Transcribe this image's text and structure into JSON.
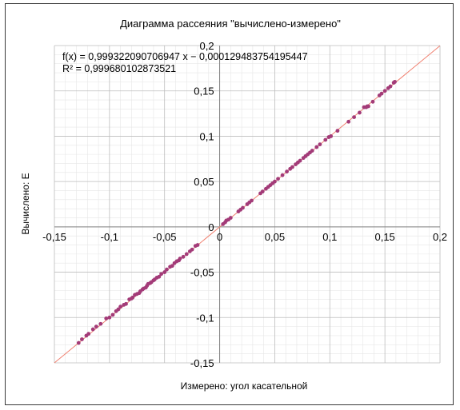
{
  "chart_data": {
    "type": "scatter",
    "title": "Диаграмма рассеяния \"вычислено-измерено\"",
    "xlabel": "Измерено: угол касательной",
    "ylabel": "Вычислено: E",
    "xlim": [
      -0.15,
      0.2
    ],
    "ylim": [
      -0.15,
      0.2
    ],
    "x_ticks": [
      "-0,15",
      "-0,1",
      "-0,05",
      "0",
      "0,05",
      "0,1",
      "0,15",
      "0,2"
    ],
    "y_ticks": [
      "-0,15",
      "-0,1",
      "-0,05",
      "0",
      "0,05",
      "0,1",
      "0,15",
      "0,2"
    ],
    "grid": true,
    "legend": "none",
    "trendline": {
      "type": "linear",
      "equation": "f(x) = 0,999322090706947 x − 0,000129483754195447",
      "r_squared": "R² = 0,999680102873521",
      "slope": 0.999322090706947,
      "intercept": -0.000129483754195447,
      "color": "#f08070"
    },
    "marker_color": "#a33b78",
    "series": [
      {
        "points": [
          [
            -0.128,
            -0.128
          ],
          [
            -0.125,
            -0.124
          ],
          [
            -0.121,
            -0.12
          ],
          [
            -0.119,
            -0.118
          ],
          [
            -0.115,
            -0.113
          ],
          [
            -0.112,
            -0.11
          ],
          [
            -0.108,
            -0.107
          ],
          [
            -0.103,
            -0.101
          ],
          [
            -0.1,
            -0.1
          ],
          [
            -0.097,
            -0.097
          ],
          [
            -0.094,
            -0.093
          ],
          [
            -0.092,
            -0.091
          ],
          [
            -0.09,
            -0.088
          ],
          [
            -0.087,
            -0.086
          ],
          [
            -0.085,
            -0.085
          ],
          [
            -0.082,
            -0.08
          ],
          [
            -0.08,
            -0.079
          ],
          [
            -0.079,
            -0.078
          ],
          [
            -0.077,
            -0.075
          ],
          [
            -0.075,
            -0.074
          ],
          [
            -0.073,
            -0.073
          ],
          [
            -0.072,
            -0.071
          ],
          [
            -0.07,
            -0.069
          ],
          [
            -0.069,
            -0.068
          ],
          [
            -0.067,
            -0.067
          ],
          [
            -0.066,
            -0.065
          ],
          [
            -0.065,
            -0.063
          ],
          [
            -0.063,
            -0.062
          ],
          [
            -0.062,
            -0.061
          ],
          [
            -0.06,
            -0.059
          ],
          [
            -0.059,
            -0.058
          ],
          [
            -0.057,
            -0.056
          ],
          [
            -0.055,
            -0.055
          ],
          [
            -0.053,
            -0.052
          ],
          [
            -0.05,
            -0.05
          ],
          [
            -0.048,
            -0.047
          ],
          [
            -0.045,
            -0.044
          ],
          [
            -0.043,
            -0.043
          ],
          [
            -0.041,
            -0.04
          ],
          [
            -0.039,
            -0.038
          ],
          [
            -0.037,
            -0.037
          ],
          [
            -0.036,
            -0.035
          ],
          [
            -0.033,
            -0.033
          ],
          [
            -0.03,
            -0.03
          ],
          [
            -0.027,
            -0.027
          ],
          [
            -0.025,
            -0.025
          ],
          [
            -0.022,
            -0.021
          ],
          [
            -0.02,
            -0.02
          ],
          [
            0.003,
            0.003
          ],
          [
            0.005,
            0.005
          ],
          [
            0.006,
            0.007
          ],
          [
            0.008,
            0.008
          ],
          [
            0.01,
            0.01
          ],
          [
            0.017,
            0.017
          ],
          [
            0.019,
            0.019
          ],
          [
            0.021,
            0.021
          ],
          [
            0.025,
            0.025
          ],
          [
            0.027,
            0.027
          ],
          [
            0.029,
            0.029
          ],
          [
            0.037,
            0.037
          ],
          [
            0.039,
            0.039
          ],
          [
            0.042,
            0.042
          ],
          [
            0.044,
            0.044
          ],
          [
            0.046,
            0.046
          ],
          [
            0.048,
            0.048
          ],
          [
            0.05,
            0.05
          ],
          [
            0.053,
            0.053
          ],
          [
            0.057,
            0.057
          ],
          [
            0.061,
            0.061
          ],
          [
            0.064,
            0.064
          ],
          [
            0.066,
            0.066
          ],
          [
            0.069,
            0.069
          ],
          [
            0.071,
            0.071
          ],
          [
            0.073,
            0.073
          ],
          [
            0.076,
            0.076
          ],
          [
            0.078,
            0.078
          ],
          [
            0.08,
            0.08
          ],
          [
            0.082,
            0.082
          ],
          [
            0.084,
            0.084
          ],
          [
            0.088,
            0.088
          ],
          [
            0.091,
            0.091
          ],
          [
            0.096,
            0.096
          ],
          [
            0.099,
            0.099
          ],
          [
            0.101,
            0.1
          ],
          [
            0.107,
            0.106
          ],
          [
            0.117,
            0.116
          ],
          [
            0.122,
            0.121
          ],
          [
            0.127,
            0.126
          ],
          [
            0.131,
            0.132
          ],
          [
            0.133,
            0.132
          ],
          [
            0.134,
            0.133
          ],
          [
            0.135,
            0.133
          ],
          [
            0.139,
            0.138
          ],
          [
            0.145,
            0.145
          ],
          [
            0.147,
            0.147
          ],
          [
            0.15,
            0.15
          ],
          [
            0.153,
            0.153
          ],
          [
            0.155,
            0.155
          ],
          [
            0.158,
            0.159
          ],
          [
            0.159,
            0.16
          ]
        ]
      }
    ]
  }
}
